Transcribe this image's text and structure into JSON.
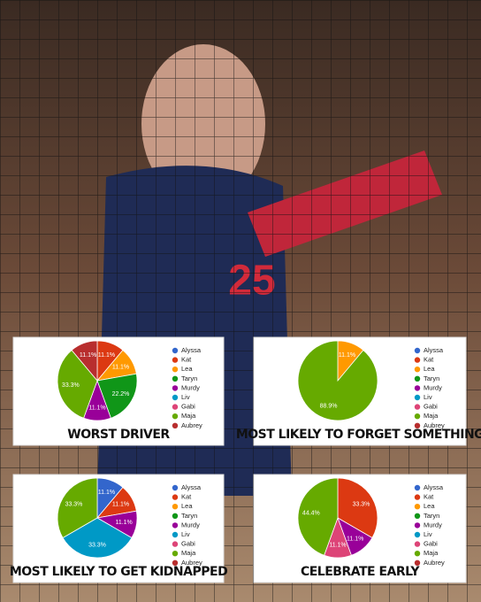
{
  "chart_data": [
    {
      "type": "pie",
      "title": "WORST DRIVER",
      "categories": [
        "Alyssa",
        "Kat",
        "Lea",
        "Taryn",
        "Murdy",
        "Liv",
        "Gabi",
        "Maja",
        "Aubrey"
      ],
      "colors": [
        "#3366cc",
        "#dc3912",
        "#ff9900",
        "#109618",
        "#990099",
        "#0099c6",
        "#dd4477",
        "#66aa00",
        "#b82e2e"
      ],
      "values": [
        0,
        11.1,
        11.1,
        22.2,
        11.1,
        0,
        0,
        33.3,
        11.1
      ],
      "value_labels": [
        null,
        "11.1%",
        "11.1%",
        "22.2%",
        "11.1%",
        null,
        null,
        "33.3%",
        "11.1%"
      ]
    },
    {
      "type": "pie",
      "title": "MOST LIKELY TO FORGET SOMETHING",
      "categories": [
        "Alyssa",
        "Kat",
        "Lea",
        "Taryn",
        "Murdy",
        "Liv",
        "Gabi",
        "Maja",
        "Aubrey"
      ],
      "colors": [
        "#3366cc",
        "#dc3912",
        "#ff9900",
        "#109618",
        "#990099",
        "#0099c6",
        "#dd4477",
        "#66aa00",
        "#b82e2e"
      ],
      "values": [
        0,
        0,
        11.1,
        0,
        0,
        0,
        0,
        88.9,
        0
      ],
      "value_labels": [
        null,
        null,
        "11.1%",
        null,
        null,
        null,
        null,
        "88.9%",
        null
      ]
    },
    {
      "type": "pie",
      "title": "MOST LIKELY TO GET KIDNAPPED",
      "categories": [
        "Alyssa",
        "Kat",
        "Lea",
        "Taryn",
        "Murdy",
        "Liv",
        "Gabi",
        "Maja",
        "Aubrey"
      ],
      "colors": [
        "#3366cc",
        "#dc3912",
        "#ff9900",
        "#109618",
        "#990099",
        "#0099c6",
        "#dd4477",
        "#66aa00",
        "#b82e2e"
      ],
      "values": [
        11.1,
        11.1,
        0,
        0,
        11.1,
        33.3,
        0,
        33.3,
        0
      ],
      "value_labels": [
        "11.1%",
        "11.1%",
        null,
        null,
        "11.1%",
        "33.3%",
        null,
        "33.3%",
        null
      ]
    },
    {
      "type": "pie",
      "title": "CELEBRATE EARLY",
      "categories": [
        "Alyssa",
        "Kat",
        "Lea",
        "Taryn",
        "Murdy",
        "Liv",
        "Gabi",
        "Maja",
        "Aubrey"
      ],
      "colors": [
        "#3366cc",
        "#dc3912",
        "#ff9900",
        "#109618",
        "#990099",
        "#0099c6",
        "#dd4477",
        "#66aa00",
        "#b82e2e"
      ],
      "values": [
        0,
        33.3,
        0,
        0,
        11.1,
        0,
        11.1,
        44.4,
        0
      ],
      "value_labels": [
        null,
        "33.3%",
        null,
        null,
        "11.1%",
        null,
        "11.1%",
        "44.4%",
        null
      ]
    }
  ]
}
